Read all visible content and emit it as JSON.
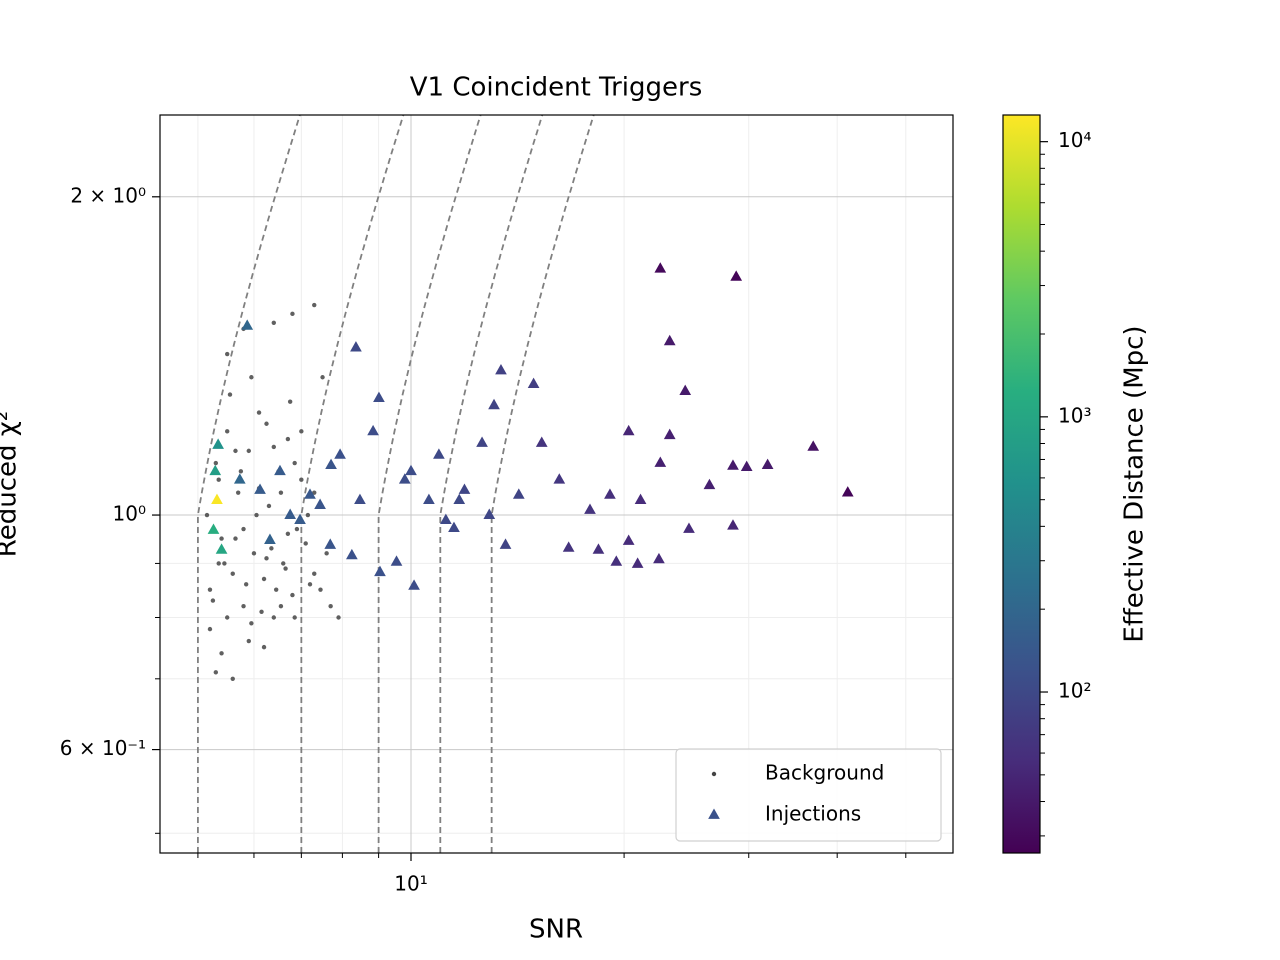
{
  "chart_data": {
    "type": "scatter",
    "title": "V1 Coincident Triggers",
    "xlabel": "SNR",
    "ylabel": "Reduced χ²",
    "xscale": "log",
    "yscale": "log",
    "xlim": [
      4.42,
      58.3
    ],
    "ylim": [
      0.479,
      2.39
    ],
    "xticks": [
      {
        "value": 10,
        "label": "10¹"
      }
    ],
    "xminorticks": [
      5,
      6,
      7,
      8,
      9,
      20,
      30,
      40,
      50
    ],
    "yticks": [
      {
        "value": 0.6,
        "label": "6 × 10⁻¹"
      },
      {
        "value": 1,
        "label": "10⁰"
      },
      {
        "value": 2,
        "label": "2 × 10⁰"
      }
    ],
    "yminorticks": [
      0.5,
      0.7,
      0.8,
      0.9
    ],
    "grid": true,
    "legend_loc": "lower right",
    "contours": [
      5,
      7,
      9,
      11,
      13
    ],
    "series": [
      {
        "name": "Background",
        "color": "#444444",
        "marker": "o",
        "x": [
          5.2,
          5.3,
          5.4,
          5.5,
          5.6,
          5.7,
          5.8,
          5.9,
          6.0,
          6.1,
          6.2,
          6.3,
          6.4,
          6.5,
          6.6,
          6.7,
          6.8,
          6.9,
          7.0,
          7.2,
          5.15,
          5.25,
          5.35,
          5.45,
          5.55,
          5.65,
          5.75,
          5.85,
          5.95,
          6.05,
          6.15,
          6.25,
          6.35,
          6.45,
          6.55,
          6.65,
          6.75,
          6.85,
          7.1,
          7.3,
          5.2,
          5.35,
          5.5,
          5.65,
          5.8,
          5.95,
          6.1,
          6.25,
          6.4,
          6.55,
          6.7,
          6.85,
          7.0,
          7.15,
          7.3,
          7.45,
          7.6,
          7.7,
          5.4,
          5.9,
          5.5,
          5.8,
          6.4,
          6.8,
          7.3,
          7.5,
          6.2,
          5.3,
          5.6,
          7.9
        ],
        "y": [
          0.85,
          1.12,
          0.95,
          1.2,
          0.88,
          1.05,
          0.82,
          1.15,
          0.92,
          1.25,
          0.87,
          1.02,
          0.8,
          1.1,
          0.9,
          1.18,
          0.84,
          0.97,
          1.08,
          0.86,
          1.0,
          0.83,
          1.08,
          0.9,
          1.3,
          0.95,
          1.1,
          0.86,
          1.35,
          1.0,
          0.81,
          1.22,
          0.93,
          0.85,
          1.05,
          0.89,
          1.28,
          1.12,
          0.94,
          0.88,
          0.78,
          0.9,
          0.8,
          1.15,
          0.97,
          0.79,
          1.06,
          0.91,
          1.16,
          0.82,
          0.96,
          0.8,
          1.2,
          1.0,
          1.05,
          0.85,
          0.92,
          0.82,
          0.74,
          0.76,
          1.42,
          1.5,
          1.52,
          1.55,
          1.58,
          1.35,
          0.75,
          0.71,
          0.7,
          0.8
        ]
      },
      {
        "name": "Injections",
        "color": "#3b528b",
        "marker": "^",
        "x": [
          22.5,
          28.8,
          23.2,
          24.4,
          23.2,
          20.3,
          37.0,
          31.9,
          41.4,
          28.5,
          29.8,
          26.4,
          28.5,
          24.7,
          22.5,
          19.5,
          20.9,
          22.4,
          20.3,
          18.4,
          16.7,
          15.3,
          14.9,
          13.4,
          13.1,
          12.6,
          8.36,
          9.01,
          8.84,
          10,
          10.95,
          11.9,
          13.6,
          12.9,
          11.5,
          10.1,
          9.54,
          8.25,
          9.04,
          7.71,
          7.44,
          6.97,
          6.53,
          6.12,
          5.73,
          5.87,
          5.34,
          5.32,
          5.26,
          5.4,
          5.29,
          6.32,
          6.75,
          7.2,
          7.94,
          8.47,
          10.6,
          11.7,
          14.2,
          16.2,
          17.9,
          19.1,
          21.1,
          9.8,
          11.2,
          7.69
        ],
        "y": [
          1.71,
          1.68,
          1.46,
          1.31,
          1.19,
          1.2,
          1.16,
          1.115,
          1.05,
          1.113,
          1.11,
          1.067,
          0.977,
          0.97,
          1.12,
          0.903,
          0.899,
          0.908,
          0.945,
          0.927,
          0.931,
          1.17,
          1.33,
          1.37,
          1.27,
          1.17,
          1.44,
          1.29,
          1.2,
          1.1,
          1.14,
          1.056,
          0.937,
          1.0,
          0.972,
          0.857,
          0.903,
          0.916,
          0.883,
          1.115,
          1.022,
          0.989,
          1.1,
          1.056,
          1.08,
          1.51,
          1.165,
          1.033,
          0.968,
          0.927,
          1.1,
          0.947,
          1.0,
          1.045,
          1.14,
          1.033,
          1.033,
          1.033,
          1.045,
          1.08,
          1.011,
          1.045,
          1.033,
          1.08,
          0.989,
          0.937
        ],
        "c": [
          30,
          28,
          40,
          40,
          45,
          50,
          35,
          40,
          28,
          40,
          40,
          45,
          50,
          55,
          45,
          60,
          55,
          55,
          55,
          60,
          65,
          65,
          80,
          85,
          90,
          90,
          100,
          110,
          110,
          110,
          100,
          95,
          90,
          95,
          100,
          110,
          110,
          120,
          120,
          130,
          130,
          150,
          150,
          150,
          200,
          200,
          600,
          12000,
          1200,
          1000,
          800,
          180,
          150,
          140,
          120,
          110,
          110,
          100,
          90,
          70,
          65,
          60,
          55,
          110,
          100,
          130
        ]
      }
    ],
    "colorbar": {
      "label": "Effective Distance (Mpc)",
      "scale": "log",
      "colormap": "viridis",
      "lim": [
        26,
        12500
      ],
      "ticks": [
        {
          "value": 100,
          "label": "10²"
        },
        {
          "value": 1000,
          "label": "10³"
        },
        {
          "value": 10000,
          "label": "10⁴"
        }
      ],
      "minorticks": [
        30,
        40,
        50,
        60,
        70,
        80,
        90,
        200,
        300,
        400,
        500,
        600,
        700,
        800,
        900,
        2000,
        3000,
        4000,
        5000,
        6000,
        7000,
        8000,
        9000
      ]
    }
  }
}
